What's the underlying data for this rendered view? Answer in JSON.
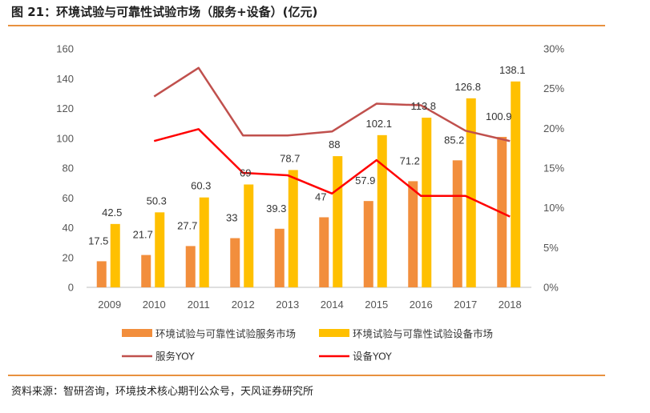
{
  "header": {
    "title": "图 21：环境试验与可靠性试验市场（服务+设备）(亿元)"
  },
  "footer": {
    "source": "资料来源：智研咨询，环境技术核心期刊公众号，天风证券研究所"
  },
  "chart_data": {
    "type": "bar",
    "title": "图 21：环境试验与可靠性试验市场（服务+设备）(亿元)",
    "categories": [
      "2009",
      "2010",
      "2011",
      "2012",
      "2013",
      "2014",
      "2015",
      "2016",
      "2017",
      "2018"
    ],
    "series": [
      {
        "name": "环境试验与可靠性试验服务市场",
        "type": "bar",
        "axis": "left",
        "color": "#f28e3c",
        "values": [
          17.5,
          21.7,
          27.7,
          33,
          39.3,
          47,
          57.9,
          71.2,
          85.2,
          100.9
        ]
      },
      {
        "name": "环境试验与可靠性试验设备市场",
        "type": "bar",
        "axis": "left",
        "color": "#ffc000",
        "values": [
          42.5,
          50.3,
          60.3,
          69,
          78.7,
          88,
          102.1,
          113.8,
          126.8,
          138.1
        ]
      },
      {
        "name": "服务YOY",
        "type": "line",
        "axis": "right",
        "color": "#c0504d",
        "values": [
          null,
          0.24,
          0.276,
          0.191,
          0.191,
          0.196,
          0.231,
          0.229,
          0.197,
          0.184
        ]
      },
      {
        "name": "设备YOY",
        "type": "line",
        "axis": "right",
        "color": "#ff0000",
        "values": [
          null,
          0.184,
          0.199,
          0.144,
          0.141,
          0.118,
          0.16,
          0.115,
          0.115,
          0.089
        ]
      }
    ],
    "y_left": {
      "min": 0,
      "max": 160,
      "ticks": [
        "0",
        "20",
        "40",
        "60",
        "80",
        "100",
        "120",
        "140",
        "160"
      ]
    },
    "y_right": {
      "min": 0,
      "max": 0.3,
      "ticks": [
        "0%",
        "5%",
        "10%",
        "15%",
        "20%",
        "25%",
        "30%"
      ]
    },
    "grid": false,
    "legend": "bottom"
  }
}
